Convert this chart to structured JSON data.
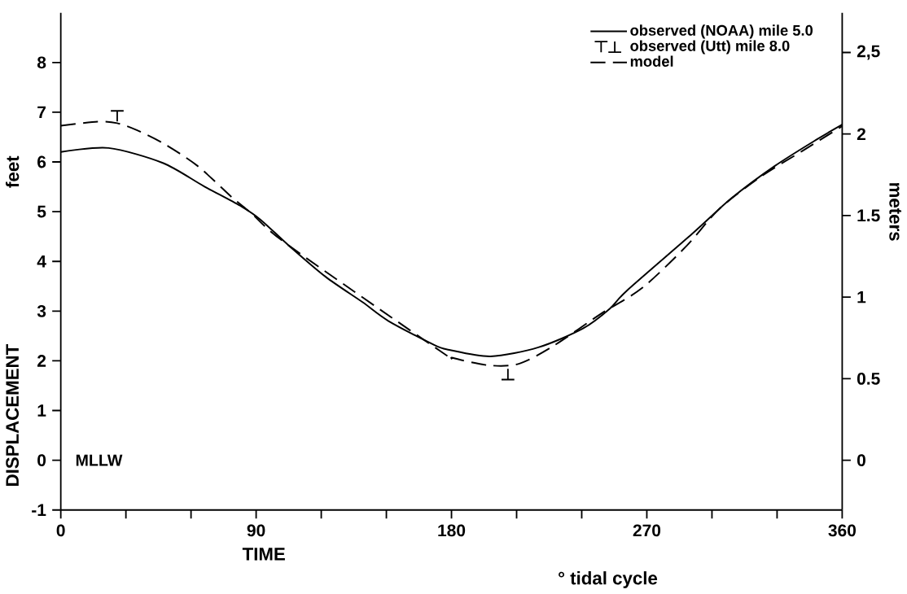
{
  "chart_data": {
    "type": "line",
    "xlabel": "TIME",
    "ylabel": "DISPLACEMENT",
    "y2label": "meters",
    "annotations": [
      "feet",
      "MLLW",
      "° tidal cycle"
    ],
    "series": [
      {
        "name": "observed (NOAA) mile 5.0",
        "color": "#000000",
        "line_style": "solid",
        "x": [
          0,
          22,
          47,
          65.6,
          82.6,
          92,
          105,
          122,
          139,
          151,
          172,
          179,
          198,
          220,
          240.6,
          253,
          261,
          291,
          309,
          329,
          348.6,
          360
        ],
        "values": [
          6.2,
          6.28,
          5.98,
          5.52,
          5.12,
          4.84,
          4.32,
          3.69,
          3.18,
          2.8,
          2.32,
          2.22,
          2.09,
          2.27,
          2.65,
          3.05,
          3.42,
          4.56,
          5.27,
          5.92,
          6.46,
          6.75
        ]
      },
      {
        "name": "observed (Utt)   mile 8.0",
        "type": "scatter",
        "color": "#000000",
        "x": [
          26,
          206
        ],
        "values": [
          6.92,
          1.73
        ]
      },
      {
        "name": "model",
        "color": "#000000",
        "line_style": "dashed",
        "x": [
          0,
          17,
          26,
          35,
          47,
          63,
          78.8,
          88,
          105,
          175,
          180.6,
          197,
          211,
          227,
          249,
          268,
          288.5,
          303,
          322,
          341.6,
          360
        ],
        "values": [
          6.73,
          6.81,
          6.78,
          6.64,
          6.38,
          5.92,
          5.29,
          4.96,
          4.32,
          2.19,
          2.06,
          1.91,
          1.94,
          2.3,
          2.95,
          3.47,
          4.32,
          5.04,
          5.69,
          6.22,
          6.72
        ]
      }
    ],
    "xlim": [
      0,
      360
    ],
    "xticks": [
      0,
      {
        "value": 30,
        "label": null
      },
      {
        "value": 60,
        "label": null
      },
      90,
      {
        "value": 120,
        "label": null
      },
      {
        "value": 150,
        "label": null
      },
      180,
      {
        "value": 210,
        "label": null
      },
      {
        "value": 240,
        "label": null
      },
      270,
      {
        "value": 300,
        "label": null
      },
      {
        "value": 330,
        "label": null
      },
      360
    ],
    "ylim": [
      -1,
      9
    ],
    "yticks": [
      -1,
      0,
      1,
      2,
      3,
      4,
      5,
      6,
      7,
      8
    ],
    "y2lim": [
      -0.3048,
      2.7432
    ],
    "y2ticks": [
      0,
      0.5,
      1,
      1.5,
      2,
      {
        "value": 2.5,
        "label": "2,5"
      }
    ],
    "grid": false,
    "legend": "top right"
  }
}
